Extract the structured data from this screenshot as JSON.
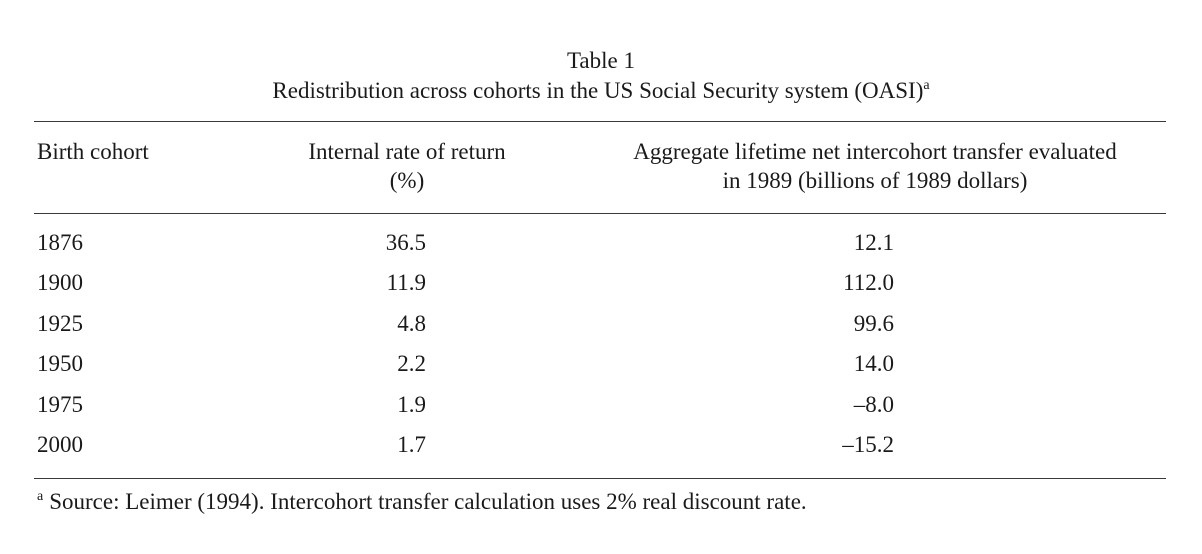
{
  "table": {
    "label": "Table 1",
    "caption": "Redistribution across cohorts in the US Social Security system (OASI)",
    "caption_note_marker": "a",
    "columns": {
      "col1": "Birth cohort",
      "col2_line1": "Internal rate of return",
      "col2_line2": "(%)",
      "col3_line1": "Aggregate lifetime net intercohort transfer evaluated",
      "col3_line2": "in 1989 (billions of 1989 dollars)"
    },
    "rows": [
      {
        "cohort": "1876",
        "irr": "36.5",
        "transfer": "12.1"
      },
      {
        "cohort": "1900",
        "irr": "11.9",
        "transfer": "112.0"
      },
      {
        "cohort": "1925",
        "irr": "4.8",
        "transfer": "99.6"
      },
      {
        "cohort": "1950",
        "irr": "2.2",
        "transfer": "14.0"
      },
      {
        "cohort": "1975",
        "irr": "1.9",
        "transfer": "–8.0"
      },
      {
        "cohort": "2000",
        "irr": "1.7",
        "transfer": "–15.2"
      }
    ],
    "footnote_marker": "a",
    "footnote": "Source: Leimer (1994). Intercohort transfer calculation uses 2% real discount rate."
  }
}
